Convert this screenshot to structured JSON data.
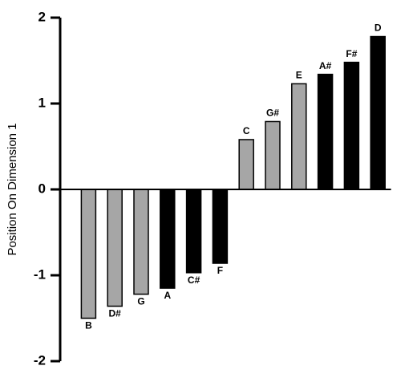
{
  "chart_data": {
    "type": "bar",
    "y_label": "Position On Dimension 1",
    "categories": [
      "B",
      "D#",
      "G",
      "A",
      "C#",
      "F",
      "C",
      "G#",
      "E",
      "A#",
      "F#",
      "D"
    ],
    "values": [
      -1.5,
      -1.36,
      -1.22,
      -1.15,
      -0.97,
      -0.86,
      0.58,
      0.79,
      1.23,
      1.34,
      1.48,
      1.78
    ],
    "colors": [
      "#a6a6a6",
      "#a6a6a6",
      "#a6a6a6",
      "#000000",
      "#000000",
      "#000000",
      "#a6a6a6",
      "#a6a6a6",
      "#a6a6a6",
      "#000000",
      "#000000",
      "#000000"
    ],
    "ylim": [
      -2,
      2
    ],
    "yticks": [
      -2,
      -1,
      0,
      1,
      2
    ]
  }
}
